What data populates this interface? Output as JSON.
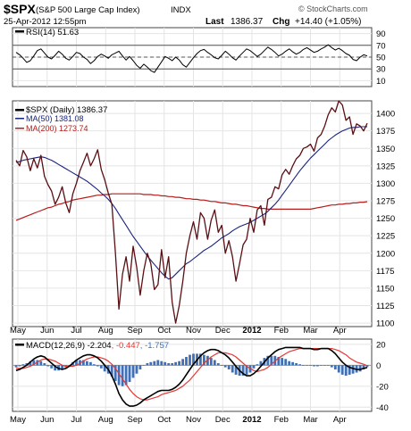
{
  "header": {
    "symbol": "$SPX",
    "name": "(S&P 500 Large Cap Index)",
    "exchange": "INDX",
    "date_time": "25-Apr-2012 12:55pm",
    "last_label": "Last",
    "last_value": "1386.37",
    "chg_label": "Chg",
    "chg_value": "+14.40 (+1.05%)",
    "watermark": "© StockCharts.com"
  },
  "colors": {
    "price": "#000000",
    "ma50": "#1a237e",
    "ma200": "#b71c1c",
    "macd": "#000000",
    "signal": "#e53935",
    "histogram": "#3f6fb5",
    "rsi": "#000000",
    "rsi_ref": "#555555"
  },
  "chart_data": [
    {
      "type": "line",
      "title": "RSI(14) 51.63",
      "series": [
        {
          "name": "RSI(14) 51.63",
          "values": [
            58,
            54,
            48,
            41,
            44,
            52,
            61,
            64,
            57,
            50,
            47,
            53,
            60,
            55,
            48,
            45,
            51,
            58,
            56,
            50,
            46,
            39,
            44,
            51,
            55,
            52,
            48,
            54,
            57,
            60,
            52,
            45,
            51,
            44,
            36,
            31,
            38,
            33,
            27,
            24,
            33,
            42,
            51,
            48,
            44,
            50,
            45,
            37,
            33,
            41,
            49,
            56,
            61,
            63,
            58,
            54,
            49,
            47,
            53,
            60,
            55,
            49,
            45,
            52,
            58,
            64,
            61,
            56,
            51,
            55,
            61,
            67,
            63,
            58,
            52,
            55,
            60,
            64,
            59,
            55,
            58,
            63,
            66,
            62,
            58,
            60,
            64,
            67,
            71,
            66,
            62,
            65,
            61,
            56,
            53,
            46,
            44,
            50,
            54,
            52
          ]
        }
      ],
      "yticks": [
        "90",
        "70",
        "50",
        "30",
        "10"
      ],
      "ylim": [
        0,
        100
      ],
      "reference_lines": [
        70,
        50,
        30
      ]
    },
    {
      "type": "line",
      "series": [
        {
          "name": "$SPX (Daily) 1386.37",
          "values": [
            1333,
            1325,
            1347,
            1338,
            1318,
            1335,
            1322,
            1340,
            1310,
            1298,
            1289,
            1270,
            1280,
            1295,
            1272,
            1258,
            1285,
            1300,
            1318,
            1330,
            1343,
            1325,
            1335,
            1348,
            1320,
            1305,
            1286,
            1270,
            1200,
            1120,
            1170,
            1195,
            1160,
            1210,
            1180,
            1140,
            1175,
            1200,
            1185,
            1148,
            1155,
            1205,
            1165,
            1195,
            1130,
            1100,
            1125,
            1160,
            1200,
            1225,
            1245,
            1220,
            1258,
            1250,
            1220,
            1247,
            1262,
            1230,
            1240,
            1200,
            1218,
            1195,
            1160,
            1185,
            1212,
            1220,
            1250,
            1230,
            1262,
            1268,
            1240,
            1277,
            1280,
            1295,
            1292,
            1312,
            1320,
            1313,
            1325,
            1335,
            1340,
            1350,
            1352,
            1356,
            1346,
            1365,
            1370,
            1382,
            1398,
            1408,
            1402,
            1418,
            1412,
            1390,
            1395,
            1370,
            1385,
            1382,
            1375,
            1386
          ]
        },
        {
          "name": "MA(50) 1381.08",
          "values": [
            1330,
            1331,
            1333,
            1334,
            1335,
            1336,
            1337,
            1338,
            1337,
            1335,
            1333,
            1330,
            1327,
            1324,
            1321,
            1318,
            1315,
            1312,
            1309,
            1306,
            1303,
            1299,
            1295,
            1291,
            1286,
            1282,
            1277,
            1271,
            1264,
            1256,
            1248,
            1240,
            1232,
            1224,
            1217,
            1210,
            1203,
            1196,
            1190,
            1184,
            1178,
            1172,
            1167,
            1163,
            1165,
            1170,
            1175,
            1180,
            1185,
            1188,
            1192,
            1196,
            1200,
            1204,
            1207,
            1210,
            1214,
            1218,
            1222,
            1225,
            1228,
            1232,
            1235,
            1238,
            1240,
            1242,
            1244,
            1247,
            1250,
            1253,
            1256,
            1260,
            1265,
            1270,
            1276,
            1283,
            1290,
            1297,
            1304,
            1311,
            1318,
            1324,
            1330,
            1336,
            1341,
            1346,
            1351,
            1356,
            1361,
            1365,
            1369,
            1372,
            1375,
            1377,
            1379,
            1380,
            1380,
            1381,
            1381,
            1381.08
          ]
        },
        {
          "name": "MA(200) 1273.74",
          "values": [
            1247,
            1249,
            1251,
            1253,
            1255,
            1257,
            1259,
            1261,
            1263,
            1265,
            1266,
            1268,
            1270,
            1271,
            1273,
            1274,
            1276,
            1277,
            1278,
            1279,
            1280,
            1281,
            1282,
            1283,
            1283,
            1284,
            1284,
            1285,
            1285,
            1285,
            1285,
            1285,
            1285,
            1285,
            1285,
            1285,
            1284,
            1284,
            1284,
            1283,
            1283,
            1282,
            1282,
            1281,
            1281,
            1280,
            1280,
            1279,
            1278,
            1278,
            1277,
            1277,
            1276,
            1276,
            1275,
            1274,
            1274,
            1273,
            1272,
            1272,
            1271,
            1270,
            1270,
            1269,
            1268,
            1268,
            1267,
            1266,
            1265,
            1264,
            1264,
            1263,
            1263,
            1263,
            1263,
            1263,
            1263,
            1263,
            1263,
            1263,
            1263,
            1263,
            1263,
            1263,
            1264,
            1265,
            1266,
            1267,
            1268,
            1269,
            1269,
            1270,
            1270,
            1271,
            1271,
            1272,
            1272,
            1273,
            1273,
            1273.74
          ]
        }
      ],
      "yticks": [
        "1400",
        "1375",
        "1350",
        "1325",
        "1300",
        "1275",
        "1250",
        "1225",
        "1200",
        "1175",
        "1150",
        "1125",
        "1100"
      ],
      "ylim": [
        1095,
        1418
      ]
    },
    {
      "type": "line",
      "title": "MACD(12,26,9) -2.204, -0.447, -1.757",
      "series": [
        {
          "name": "MACD(12,26,9) -2.204",
          "values": [
            -5,
            -4,
            -2,
            0,
            3,
            6,
            8,
            9,
            8,
            5,
            2,
            -1,
            -3,
            -4,
            -3,
            -1,
            2,
            5,
            7,
            9,
            10,
            10,
            9,
            7,
            4,
            0,
            -4,
            -10,
            -18,
            -27,
            -33,
            -37,
            -39,
            -39,
            -38,
            -36,
            -33,
            -31,
            -29,
            -27,
            -25,
            -24,
            -24,
            -24,
            -23,
            -21,
            -18,
            -14,
            -9,
            -4,
            1,
            5,
            9,
            12,
            14,
            15,
            15,
            14,
            12,
            10,
            7,
            3,
            -1,
            -5,
            -8,
            -10,
            -10,
            -8,
            -5,
            -1,
            3,
            7,
            10,
            13,
            15,
            16,
            17,
            17,
            17,
            17,
            17,
            16,
            16,
            16,
            15,
            15,
            16,
            16,
            16,
            14,
            11,
            7,
            3,
            0,
            -2,
            -3,
            -4,
            -4,
            -3,
            -2.204
          ]
        },
        {
          "name": "-0.447",
          "values": [
            -3,
            -3,
            -3,
            -2,
            -1,
            1,
            3,
            5,
            6,
            6,
            5,
            4,
            2,
            0,
            -1,
            -1,
            -1,
            0,
            2,
            4,
            6,
            7,
            8,
            8,
            7,
            6,
            4,
            1,
            -3,
            -8,
            -13,
            -18,
            -23,
            -27,
            -30,
            -32,
            -33,
            -33,
            -32,
            -31,
            -30,
            -28,
            -27,
            -26,
            -25,
            -24,
            -22,
            -20,
            -17,
            -14,
            -10,
            -6,
            -2,
            2,
            5,
            8,
            10,
            12,
            12,
            12,
            11,
            10,
            8,
            5,
            2,
            -1,
            -3,
            -5,
            -6,
            -5,
            -4,
            -2,
            1,
            4,
            7,
            9,
            11,
            13,
            14,
            15,
            16,
            16,
            16,
            16,
            16,
            16,
            16,
            16,
            16,
            16,
            15,
            14,
            12,
            10,
            7,
            5,
            3,
            2,
            1,
            -0.447
          ]
        },
        {
          "name": "-1.757",
          "values": [
            -2,
            -1,
            1,
            2,
            4,
            5,
            5,
            4,
            2,
            -1,
            -3,
            -5,
            -5,
            -4,
            -2,
            0,
            3,
            5,
            5,
            5,
            4,
            3,
            1,
            -1,
            -3,
            -6,
            -8,
            -11,
            -15,
            -19,
            -20,
            -19,
            -16,
            -12,
            -8,
            -4,
            0,
            2,
            3,
            4,
            5,
            4,
            3,
            2,
            2,
            3,
            4,
            6,
            8,
            10,
            11,
            11,
            11,
            10,
            9,
            7,
            5,
            2,
            0,
            -2,
            -4,
            -7,
            -9,
            -10,
            -10,
            -9,
            -7,
            -3,
            1,
            4,
            7,
            9,
            9,
            9,
            8,
            7,
            6,
            4,
            3,
            2,
            1,
            0,
            0,
            0,
            -1,
            -1,
            0,
            0,
            0,
            -2,
            -4,
            -7,
            -9,
            -10,
            -9,
            -8,
            -7,
            -6,
            -4,
            -1.757
          ]
        }
      ],
      "yticks": [
        "20",
        "0",
        "-20",
        "-40"
      ],
      "ylim": [
        -44,
        25
      ]
    }
  ],
  "x_axis": {
    "months": [
      "May",
      "Jun",
      "Jul",
      "Aug",
      "Sep",
      "Oct",
      "Nov",
      "Dec",
      "2012",
      "Feb",
      "Mar",
      "Apr"
    ]
  }
}
